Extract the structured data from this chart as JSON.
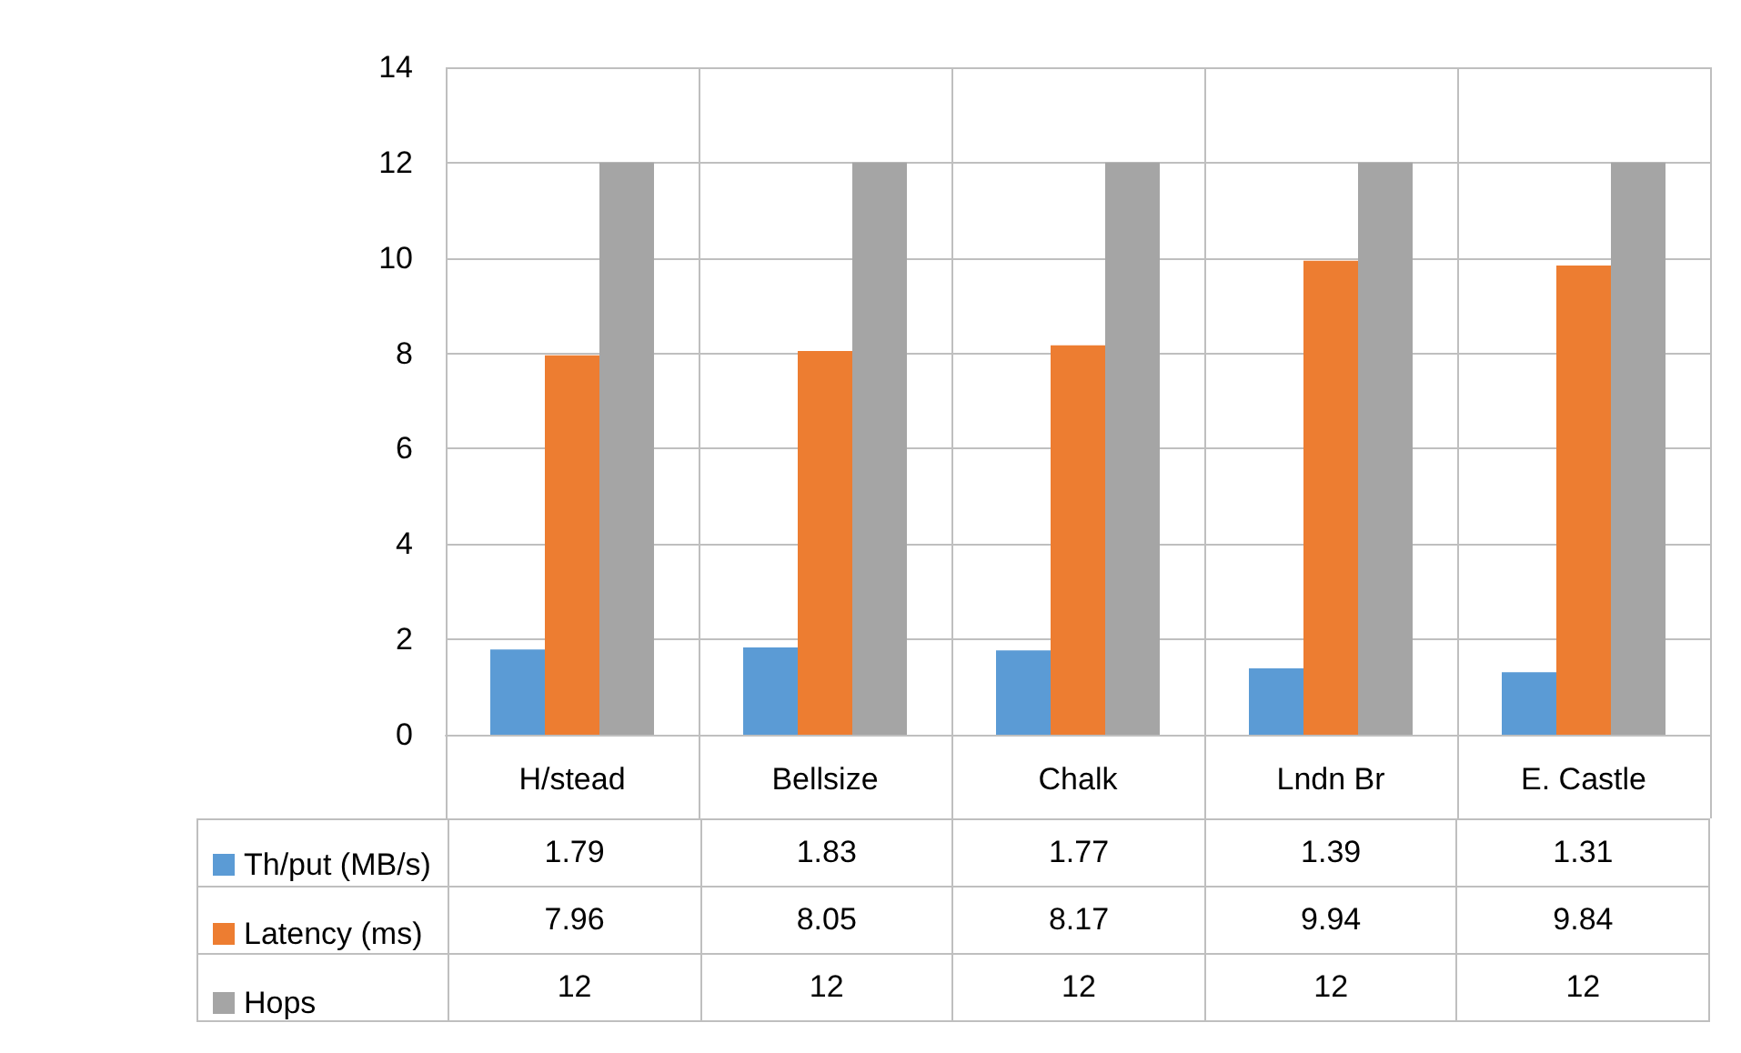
{
  "chart_data": {
    "type": "bar",
    "categories": [
      "H/stead",
      "Bellsize",
      "Chalk",
      "Lndn Br",
      "E. Castle"
    ],
    "series": [
      {
        "name": "Th/put (MB/s)",
        "color": "#5b9bd5",
        "values": [
          1.79,
          1.83,
          1.77,
          1.39,
          1.31
        ]
      },
      {
        "name": "Latency (ms)",
        "color": "#ed7d31",
        "values": [
          7.96,
          8.05,
          8.17,
          9.94,
          9.84
        ]
      },
      {
        "name": "Hops",
        "color": "#a5a5a5",
        "values": [
          12,
          12,
          12,
          12,
          12
        ]
      }
    ],
    "ylim": [
      0,
      14
    ],
    "yticks": [
      0,
      2,
      4,
      6,
      8,
      10,
      12,
      14
    ],
    "grid": true,
    "legend": "bottom left",
    "data_labels": true
  }
}
